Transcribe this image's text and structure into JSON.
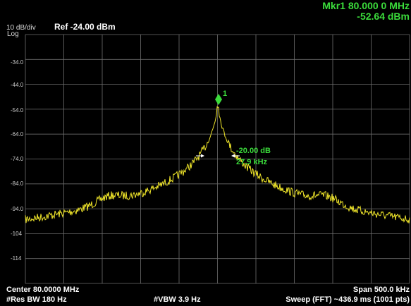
{
  "header": {
    "scale_line1": "10 dB/div",
    "scale_line2": "Log",
    "ref_level": "Ref -24.00 dBm"
  },
  "marker": {
    "line1": "Mkr1 80.000 0 MHz",
    "line2": "-52.64 dBm",
    "id_label": "1",
    "delta_db": "-20.00 dB",
    "delta_bw": "27.9 kHz"
  },
  "axis": {
    "y_labels": [
      "-34.0",
      "-44.0",
      "-54.0",
      "-64.0",
      "-74.0",
      "-84.0",
      "-94.0",
      "-104",
      "-114"
    ]
  },
  "footer": {
    "center": "Center 80.0000 MHz",
    "span": "Span 500.0 kHz",
    "res_bw": "#Res BW 180 Hz",
    "vbw": "#VBW 3.9 Hz",
    "sweep": "Sweep (FFT)  ~436.9 ms (1001 pts)"
  },
  "colors": {
    "trace": "#f0e62a",
    "grid": "#6e6e6e",
    "marker": "#3bdc3b",
    "background": "#000000"
  }
}
